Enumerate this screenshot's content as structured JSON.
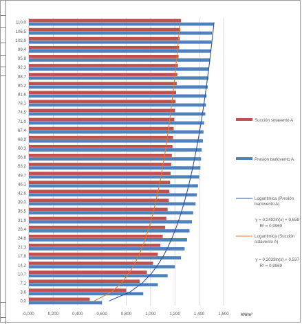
{
  "chart_data": {
    "type": "bar",
    "orientation": "horizontal",
    "categories": [
      "0,0",
      "3,6",
      "7,1",
      "10,7",
      "14,2",
      "17,8",
      "21,3",
      "24,8",
      "28,4",
      "31,9",
      "35,5",
      "39,0",
      "42,6",
      "46,1",
      "49,7",
      "53,2",
      "56,8",
      "60,3",
      "63,9",
      "67,4",
      "71,0",
      "74,5",
      "78,1",
      "81,6",
      "85,2",
      "88,7",
      "92,3",
      "95,8",
      "99,4",
      "102,9",
      "106,5",
      "110,0"
    ],
    "x_ticks": [
      "0,000",
      "0,200",
      "0,400",
      "0,600",
      "0,800",
      "1,000",
      "1,200",
      "1,400",
      "1,600"
    ],
    "xlim": [
      0,
      1.6
    ],
    "xlabel": "kN/m²",
    "grid": true,
    "legend_placement": "right",
    "series": [
      {
        "name": "Succión sotavento A",
        "color": "#c0504d",
        "values": [
          0.5,
          0.8,
          0.91,
          0.97,
          1.02,
          1.06,
          1.08,
          1.1,
          1.12,
          1.13,
          1.14,
          1.15,
          1.155,
          1.16,
          1.165,
          1.17,
          1.175,
          1.18,
          1.185,
          1.19,
          1.195,
          1.2,
          1.205,
          1.21,
          1.215,
          1.22,
          1.225,
          1.23,
          1.235,
          1.24,
          1.245,
          1.25
        ]
      },
      {
        "name": "Presión barlovento A",
        "color": "#4f81bd",
        "values": [
          0.6,
          0.94,
          1.06,
          1.14,
          1.2,
          1.25,
          1.28,
          1.3,
          1.32,
          1.34,
          1.35,
          1.37,
          1.38,
          1.39,
          1.4,
          1.41,
          1.415,
          1.42,
          1.43,
          1.435,
          1.44,
          1.45,
          1.455,
          1.46,
          1.47,
          1.475,
          1.48,
          1.49,
          1.495,
          1.5,
          1.505,
          1.52
        ]
      }
    ],
    "trendlines": [
      {
        "name": "Logarítmica (Presión barlovento A)",
        "color": "#2e4fa0",
        "equation": "y = 0,2492ln(x) + 0,658",
        "r2": "R² = 0,9969",
        "a": 0.2492,
        "b": 0.658
      },
      {
        "name": "Logarítmica (Succión sotavento A)",
        "color": "#e07b2e",
        "equation": "y = 0,2033ln(x) + 0,537",
        "r2": "R² = 0,9969",
        "a": 0.2033,
        "b": 0.537
      }
    ]
  }
}
